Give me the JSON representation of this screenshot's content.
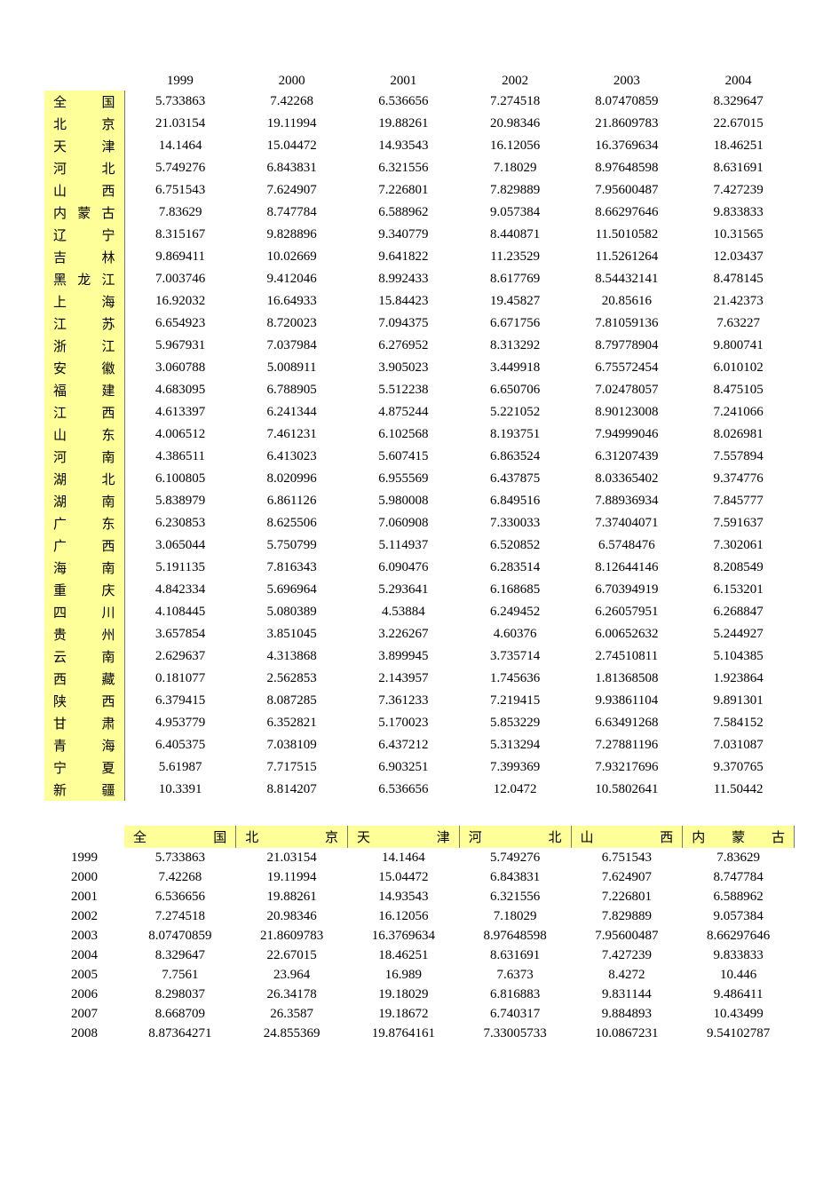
{
  "table1": {
    "background_highlight": "#ffff99",
    "border_color": "#777777",
    "text_color": "#000000",
    "font_family": "SimSun",
    "font_size_pt": 11,
    "years": [
      "1999",
      "2000",
      "2001",
      "2002",
      "2003",
      "2004"
    ],
    "rows": [
      {
        "label": "全　国",
        "v": [
          "5.733863",
          "7.42268",
          "6.536656",
          "7.274518",
          "8.07470859",
          "8.329647"
        ]
      },
      {
        "label": "北　京",
        "v": [
          "21.03154",
          "19.11994",
          "19.88261",
          "20.98346",
          "21.8609783",
          "22.67015"
        ]
      },
      {
        "label": "天　津",
        "v": [
          "14.1464",
          "15.04472",
          "14.93543",
          "16.12056",
          "16.3769634",
          "18.46251"
        ]
      },
      {
        "label": "河　北",
        "v": [
          "5.749276",
          "6.843831",
          "6.321556",
          "7.18029",
          "8.97648598",
          "8.631691"
        ]
      },
      {
        "label": "山　西",
        "v": [
          "6.751543",
          "7.624907",
          "7.226801",
          "7.829889",
          "7.95600487",
          "7.427239"
        ]
      },
      {
        "label": "内蒙古",
        "v": [
          "7.83629",
          "8.747784",
          "6.588962",
          "9.057384",
          "8.66297646",
          "9.833833"
        ]
      },
      {
        "label": "辽　宁",
        "v": [
          "8.315167",
          "9.828896",
          "9.340779",
          "8.440871",
          "11.5010582",
          "10.31565"
        ]
      },
      {
        "label": "吉　林",
        "v": [
          "9.869411",
          "10.02669",
          "9.641822",
          "11.23529",
          "11.5261264",
          "12.03437"
        ]
      },
      {
        "label": "黑龙江",
        "v": [
          "7.003746",
          "9.412046",
          "8.992433",
          "8.617769",
          "8.54432141",
          "8.478145"
        ]
      },
      {
        "label": "上　海",
        "v": [
          "16.92032",
          "16.64933",
          "15.84423",
          "19.45827",
          "20.85616",
          "21.42373"
        ]
      },
      {
        "label": "江　苏",
        "v": [
          "6.654923",
          "8.720023",
          "7.094375",
          "6.671756",
          "7.81059136",
          "7.63227"
        ]
      },
      {
        "label": "浙　江",
        "v": [
          "5.967931",
          "7.037984",
          "6.276952",
          "8.313292",
          "8.79778904",
          "9.800741"
        ]
      },
      {
        "label": "安　徽",
        "v": [
          "3.060788",
          "5.008911",
          "3.905023",
          "3.449918",
          "6.75572454",
          "6.010102"
        ]
      },
      {
        "label": "福　建",
        "v": [
          "4.683095",
          "6.788905",
          "5.512238",
          "6.650706",
          "7.02478057",
          "8.475105"
        ]
      },
      {
        "label": "江　西",
        "v": [
          "4.613397",
          "6.241344",
          "4.875244",
          "5.221052",
          "8.90123008",
          "7.241066"
        ]
      },
      {
        "label": "山　东",
        "v": [
          "4.006512",
          "7.461231",
          "6.102568",
          "8.193751",
          "7.94999046",
          "8.026981"
        ]
      },
      {
        "label": "河　南",
        "v": [
          "4.386511",
          "6.413023",
          "5.607415",
          "6.863524",
          "6.31207439",
          "7.557894"
        ]
      },
      {
        "label": "湖　北",
        "v": [
          "6.100805",
          "8.020996",
          "6.955569",
          "6.437875",
          "8.03365402",
          "9.374776"
        ]
      },
      {
        "label": "湖　南",
        "v": [
          "5.838979",
          "6.861126",
          "5.980008",
          "6.849516",
          "7.88936934",
          "7.845777"
        ]
      },
      {
        "label": "广　东",
        "v": [
          "6.230853",
          "8.625506",
          "7.060908",
          "7.330033",
          "7.37404071",
          "7.591637"
        ]
      },
      {
        "label": "广　西",
        "v": [
          "3.065044",
          "5.750799",
          "5.114937",
          "6.520852",
          "6.5748476",
          "7.302061"
        ]
      },
      {
        "label": "海　南",
        "v": [
          "5.191135",
          "7.816343",
          "6.090476",
          "6.283514",
          "8.12644146",
          "8.208549"
        ]
      },
      {
        "label": "重　庆",
        "v": [
          "4.842334",
          "5.696964",
          "5.293641",
          "6.168685",
          "6.70394919",
          "6.153201"
        ]
      },
      {
        "label": "四　川",
        "v": [
          "4.108445",
          "5.080389",
          "4.53884",
          "6.249452",
          "6.26057951",
          "6.268847"
        ]
      },
      {
        "label": "贵　州",
        "v": [
          "3.657854",
          "3.851045",
          "3.226267",
          "4.60376",
          "6.00652632",
          "5.244927"
        ]
      },
      {
        "label": "云　南",
        "v": [
          "2.629637",
          "4.313868",
          "3.899945",
          "3.735714",
          "2.74510811",
          "5.104385"
        ]
      },
      {
        "label": "西　藏",
        "v": [
          "0.181077",
          "2.562853",
          "2.143957",
          "1.745636",
          "1.81368508",
          "1.923864"
        ]
      },
      {
        "label": "陕　西",
        "v": [
          "6.379415",
          "8.087285",
          "7.361233",
          "7.219415",
          "9.93861104",
          "9.891301"
        ]
      },
      {
        "label": "甘　肃",
        "v": [
          "4.953779",
          "6.352821",
          "5.170023",
          "5.853229",
          "6.63491268",
          "7.584152"
        ]
      },
      {
        "label": "青　海",
        "v": [
          "6.405375",
          "7.038109",
          "6.437212",
          "5.313294",
          "7.27881196",
          "7.031087"
        ]
      },
      {
        "label": "宁　夏",
        "v": [
          "5.61987",
          "7.717515",
          "6.903251",
          "7.399369",
          "7.93217696",
          "9.370765"
        ]
      },
      {
        "label": "新　疆",
        "v": [
          "10.3391",
          "8.814207",
          "6.536656",
          "12.0472",
          "10.5802641",
          "11.50442"
        ]
      }
    ]
  },
  "table2": {
    "background_highlight": "#ffff99",
    "border_color": "#777777",
    "headers": [
      "全　国",
      "北　京",
      "天　津",
      "河　北",
      "山　西",
      "内蒙古"
    ],
    "rows": [
      {
        "year": "1999",
        "v": [
          "5.733863",
          "21.03154",
          "14.1464",
          "5.749276",
          "6.751543",
          "7.83629"
        ]
      },
      {
        "year": "2000",
        "v": [
          "7.42268",
          "19.11994",
          "15.04472",
          "6.843831",
          "7.624907",
          "8.747784"
        ]
      },
      {
        "year": "2001",
        "v": [
          "6.536656",
          "19.88261",
          "14.93543",
          "6.321556",
          "7.226801",
          "6.588962"
        ]
      },
      {
        "year": "2002",
        "v": [
          "7.274518",
          "20.98346",
          "16.12056",
          "7.18029",
          "7.829889",
          "9.057384"
        ]
      },
      {
        "year": "2003",
        "v": [
          "8.07470859",
          "21.8609783",
          "16.3769634",
          "8.97648598",
          "7.95600487",
          "8.66297646"
        ]
      },
      {
        "year": "2004",
        "v": [
          "8.329647",
          "22.67015",
          "18.46251",
          "8.631691",
          "7.427239",
          "9.833833"
        ]
      },
      {
        "year": "2005",
        "v": [
          "7.7561",
          "23.964",
          "16.989",
          "7.6373",
          "8.4272",
          "10.446"
        ]
      },
      {
        "year": "2006",
        "v": [
          "8.298037",
          "26.34178",
          "19.18029",
          "6.816883",
          "9.831144",
          "9.486411"
        ]
      },
      {
        "year": "2007",
        "v": [
          "8.668709",
          "26.3587",
          "19.18672",
          "6.740317",
          "9.884893",
          "10.43499"
        ]
      },
      {
        "year": "2008",
        "v": [
          "8.87364271",
          "24.855369",
          "19.8764161",
          "7.33005733",
          "10.0867231",
          "9.54102787"
        ]
      }
    ]
  }
}
